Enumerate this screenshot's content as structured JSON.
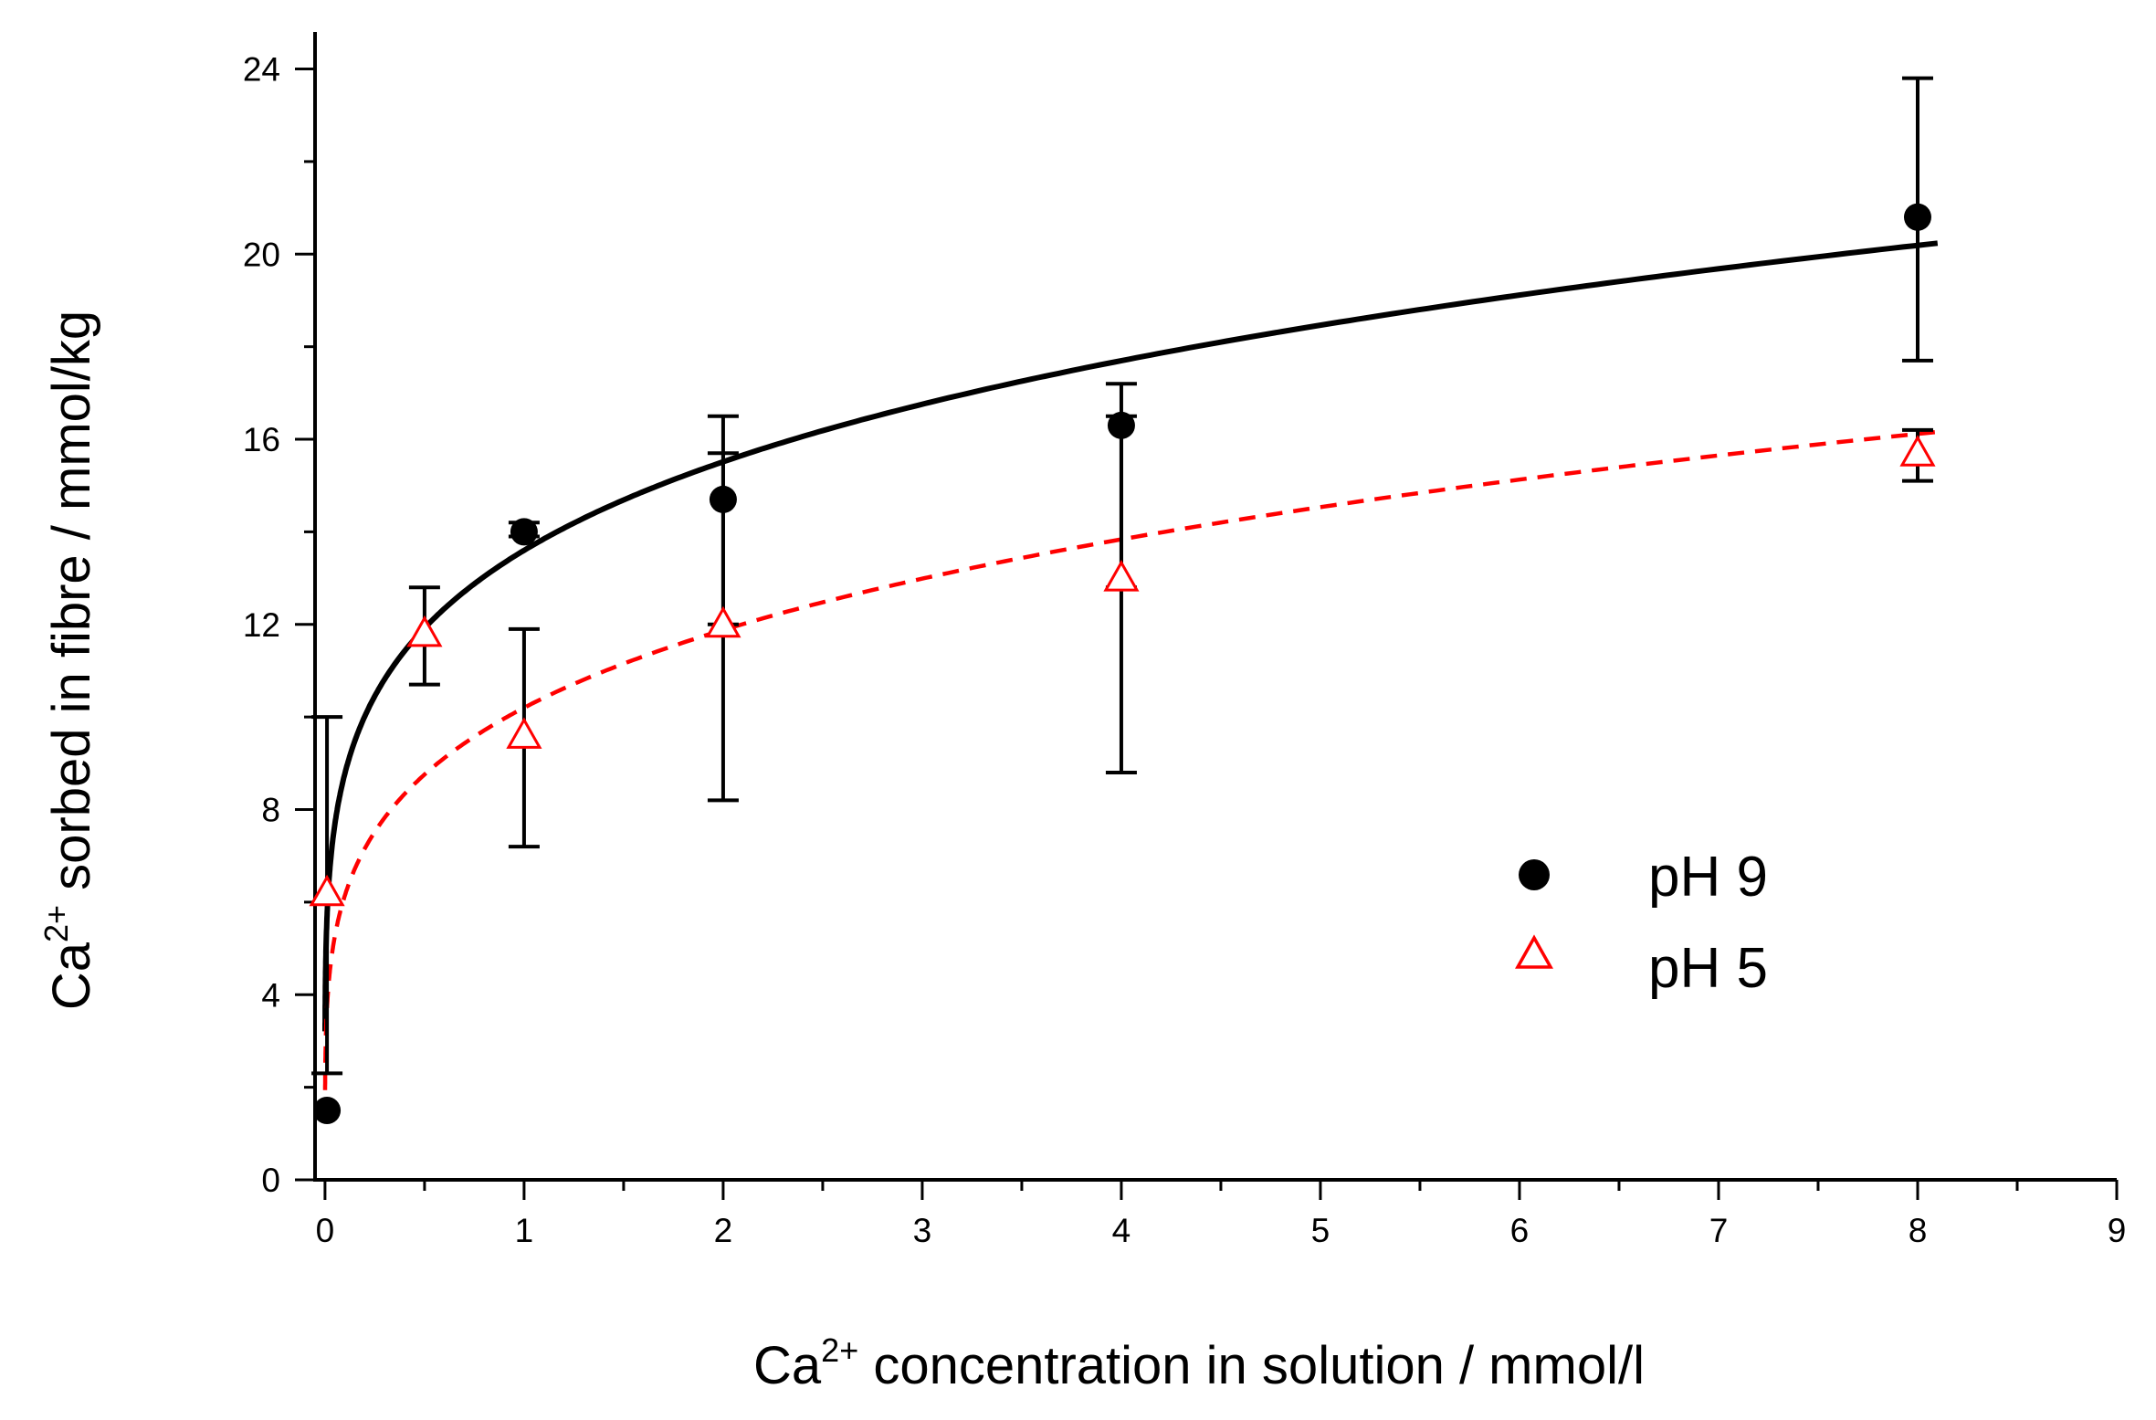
{
  "chart_data": {
    "type": "scatter",
    "title": "",
    "xlabel": {
      "pre": "Ca",
      "sup": "2+",
      "post": " concentration in solution / mmol/l"
    },
    "ylabel": {
      "pre": "Ca",
      "sup": "2+",
      "post": " sorbed in fibre / mmol/kg"
    },
    "xlim": [
      -0.05,
      9
    ],
    "ylim": [
      0,
      24.8
    ],
    "xticks": [
      0,
      1,
      2,
      3,
      4,
      5,
      6,
      7,
      8,
      9
    ],
    "yticks": [
      0,
      4,
      8,
      12,
      16,
      20,
      24
    ],
    "xtick_labels": [
      "0",
      "1",
      "2",
      "3",
      "4",
      "5",
      "6",
      "7",
      "8",
      "9"
    ],
    "ytick_labels": [
      "0",
      "4",
      "8",
      "12",
      "16",
      "20",
      "24"
    ],
    "legend_position": "center-right",
    "series": [
      {
        "name": "pH 9",
        "marker": "filled-circle",
        "color": "#000000",
        "x": [
          0.01,
          1,
          2,
          4,
          8
        ],
        "y": [
          1.5,
          14.0,
          14.7,
          16.3,
          20.8
        ],
        "err_low": [
          2.3,
          13.9,
          8.2,
          8.8,
          17.7
        ],
        "err_high": [
          10.0,
          14.2,
          16.5,
          17.2,
          23.8
        ],
        "fit": {
          "style": "solid",
          "a": 13.6,
          "b": 0.19
        }
      },
      {
        "name": "pH 5",
        "marker": "open-triangle",
        "color": "#ff0000",
        "x": [
          0.01,
          0.5,
          1,
          2,
          4,
          8
        ],
        "y": [
          6.2,
          11.8,
          9.6,
          12.0,
          13.0,
          15.7
        ],
        "err_low": [
          null,
          10.7,
          7.2,
          12.0,
          12.8,
          15.1
        ],
        "err_high": [
          null,
          12.8,
          11.9,
          15.7,
          16.5,
          16.2
        ],
        "fit": {
          "style": "dashed",
          "a": 10.2,
          "b": 0.22
        }
      }
    ]
  }
}
